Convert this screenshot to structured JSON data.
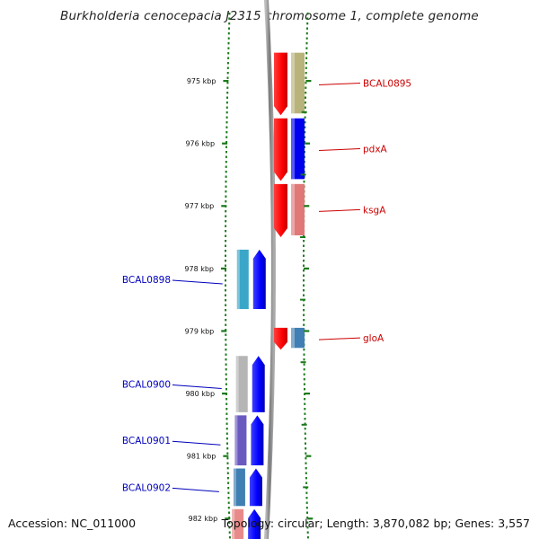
{
  "title": "Burkholderia cenocepacia J2315 chromosome 1, complete genome",
  "accession_text": "Accession: NC_011000",
  "summary_text": "Topology: circular; Length: 3,870,082 bp; Genes: 3,557",
  "colors": {
    "forward_label": "#cc0000",
    "reverse_label": "#0000bb",
    "tick": "#1a7a1a",
    "backbone": "#888888"
  },
  "ticks": [
    {
      "label": "975 kbp",
      "kbp": 975
    },
    {
      "label": "976 kbp",
      "kbp": 976
    },
    {
      "label": "977 kbp",
      "kbp": 977
    },
    {
      "label": "978 kbp",
      "kbp": 978
    },
    {
      "label": "979 kbp",
      "kbp": 979
    },
    {
      "label": "980 kbp",
      "kbp": 980
    },
    {
      "label": "981 kbp",
      "kbp": 981
    },
    {
      "label": "982 kbp",
      "kbp": 982
    }
  ],
  "forward_genes": [
    {
      "name": "BCAL0895",
      "start_kbp": 974.55,
      "end_kbp": 975.55,
      "cog_color": "#b8b37a"
    },
    {
      "name": "pdxA",
      "start_kbp": 975.6,
      "end_kbp": 976.6,
      "cog_color": "#0000ee"
    },
    {
      "name": "ksgA",
      "start_kbp": 976.65,
      "end_kbp": 977.5,
      "cog_color": "#e07878"
    },
    {
      "name": "gloA",
      "start_kbp": 978.95,
      "end_kbp": 979.3,
      "cog_color": "#3f7fb3"
    }
  ],
  "reverse_genes": [
    {
      "name": "BCAL0898",
      "start_kbp": 977.7,
      "end_kbp": 978.65,
      "cog_color": "#3aa7c8"
    },
    {
      "name": "BCAL0900",
      "start_kbp": 979.4,
      "end_kbp": 980.3,
      "cog_color": "#b5b5b5"
    },
    {
      "name": "BCAL0901",
      "start_kbp": 980.35,
      "end_kbp": 981.15,
      "cog_color": "#6a5ac0"
    },
    {
      "name": "BCAL0902",
      "start_kbp": 981.2,
      "end_kbp": 981.8,
      "cog_color": "#3f7fb3"
    },
    {
      "name": "",
      "start_kbp": 981.85,
      "end_kbp": 982.6,
      "cog_color": "#e88a8a"
    }
  ]
}
